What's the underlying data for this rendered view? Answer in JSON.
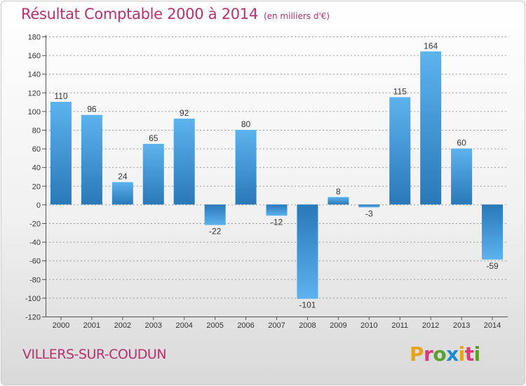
{
  "header": {
    "title": "Résultat Comptable 2000 à 2014",
    "subtitle": "(en milliers d'€)"
  },
  "footer": {
    "commune": "VILLERS-SUR-COUDUN",
    "logo_text": "Proxiti",
    "logo_colors": [
      "#e8a21c",
      "#d83a7a",
      "#5aa02c",
      "#1e88d0",
      "#e8a21c",
      "#d83a7a",
      "#5aa02c"
    ]
  },
  "colors": {
    "title": "#b8306e",
    "bar_light": "#5cb3ee",
    "bar_dark": "#2a78b8",
    "grid": "#9a9a9a",
    "axis_text": "#333333"
  },
  "chart_data": {
    "type": "bar",
    "categories": [
      "2000",
      "2001",
      "2002",
      "2003",
      "2004",
      "2005",
      "2006",
      "2007",
      "2008",
      "2009",
      "2010",
      "2011",
      "2012",
      "2013",
      "2014"
    ],
    "values": [
      110,
      96,
      24,
      65,
      92,
      -22,
      80,
      -12,
      -101,
      8,
      -3,
      115,
      164,
      60,
      -59
    ],
    "ylim": [
      -120,
      180
    ],
    "yticks": [
      -120,
      -100,
      -80,
      -60,
      -40,
      -20,
      0,
      20,
      40,
      60,
      80,
      100,
      120,
      140,
      160,
      180
    ],
    "grid": true,
    "xlabel": "",
    "ylabel": ""
  }
}
